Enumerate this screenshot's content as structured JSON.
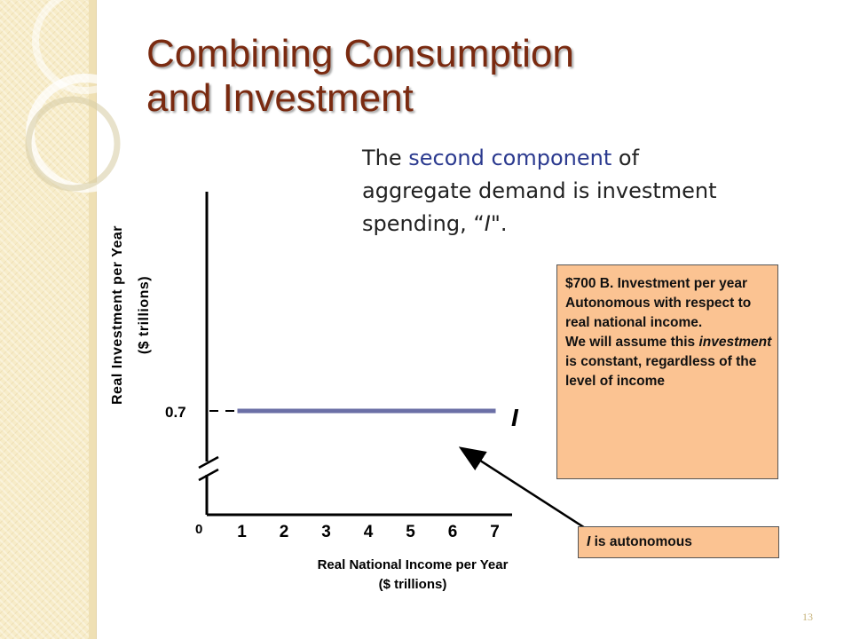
{
  "slide": {
    "title_line1": "Combining Consumption",
    "title_line2": "and Investment",
    "intro": {
      "part1": "The ",
      "highlight": "second component",
      "part2": " of aggregate demand is investment spending, “",
      "symbol": "I",
      "part3": "\"."
    },
    "slide_number": "13"
  },
  "callout_main": {
    "line1": "$700 B. Investment per year",
    "line2": "Autonomous with respect to real national income.",
    "line3_pre": "We will assume this ",
    "line3_em": "investment",
    "line3_post": " is constant, regardless of the level of income"
  },
  "callout_autonomous": {
    "symbol": "I",
    "text": " is autonomous"
  },
  "chart_data": {
    "type": "line",
    "x": [
      1,
      7
    ],
    "series": [
      {
        "name": "I",
        "values": [
          0.7,
          0.7
        ]
      }
    ],
    "series_color": "#6b6fa6",
    "xlabel_line1": "Real National Income per Year",
    "xlabel_line2": "($ trillions)",
    "ylabel_line1": "Real Investment per Year",
    "ylabel_line2": "($ trillions)",
    "x_ticks": [
      "1",
      "2",
      "3",
      "4",
      "5",
      "6",
      "7"
    ],
    "origin_label": "0",
    "y_tick_label": "0.7",
    "y_tick_value": 0.7,
    "xlim": [
      0,
      7
    ],
    "axis_break": true,
    "grid": false
  }
}
